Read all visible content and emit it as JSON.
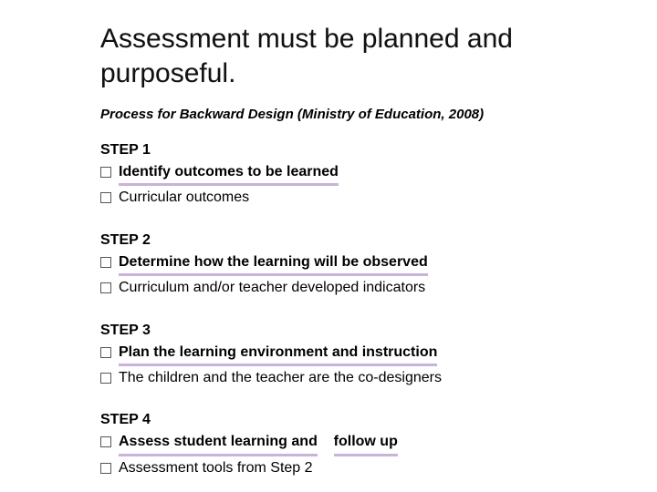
{
  "colors": {
    "background": "#ffffff",
    "text": "#000000",
    "title_text": "#111111",
    "underline": "#c9b3d9",
    "box_border": "#555555"
  },
  "typography": {
    "font_family": "Arial",
    "title_fontsize_pt": 22,
    "subhead_fontsize_pt": 11,
    "body_fontsize_pt": 12
  },
  "title": "Assessment must be planned and purposeful.",
  "subhead": "Process for Backward Design (Ministry of Education, 2008)",
  "steps": [
    {
      "label": "STEP 1",
      "line1": "Identify outcomes to be learned",
      "line2": "Curricular outcomes"
    },
    {
      "label": "STEP 2",
      "line1": "Determine how the learning will be observed",
      "line2": "Curriculum and/or teacher developed indicators"
    },
    {
      "label": "STEP 3",
      "line1": "Plan the learning environment and instruction",
      "line2": "The children and the teacher are the co-designers"
    },
    {
      "label": "STEP 4",
      "line1_a": "Assess student learning and",
      "line1_b": "follow up",
      "line2": "Assessment tools from Step 2"
    }
  ]
}
